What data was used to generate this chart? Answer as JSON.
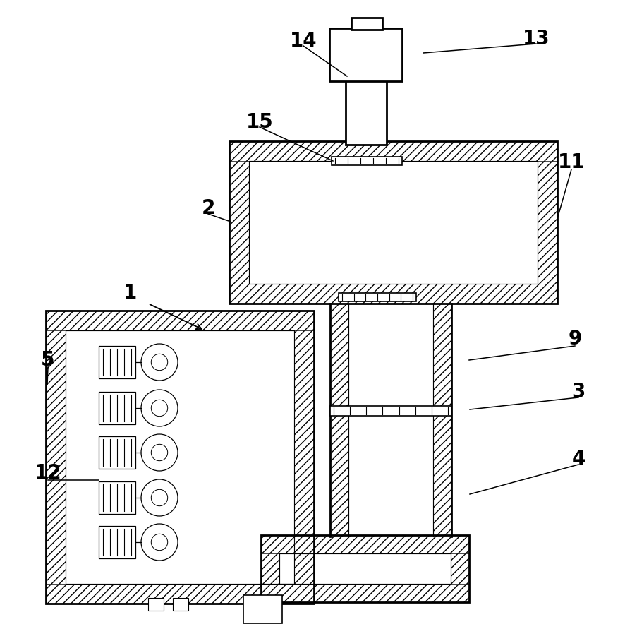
{
  "bg_color": "#ffffff",
  "line_color": "#000000",
  "label_color": "#000000",
  "label_fontsize": 20,
  "arrow_color": "#000000",
  "hatch": "///",
  "lw_thick": 2.0,
  "lw_thin": 1.2
}
